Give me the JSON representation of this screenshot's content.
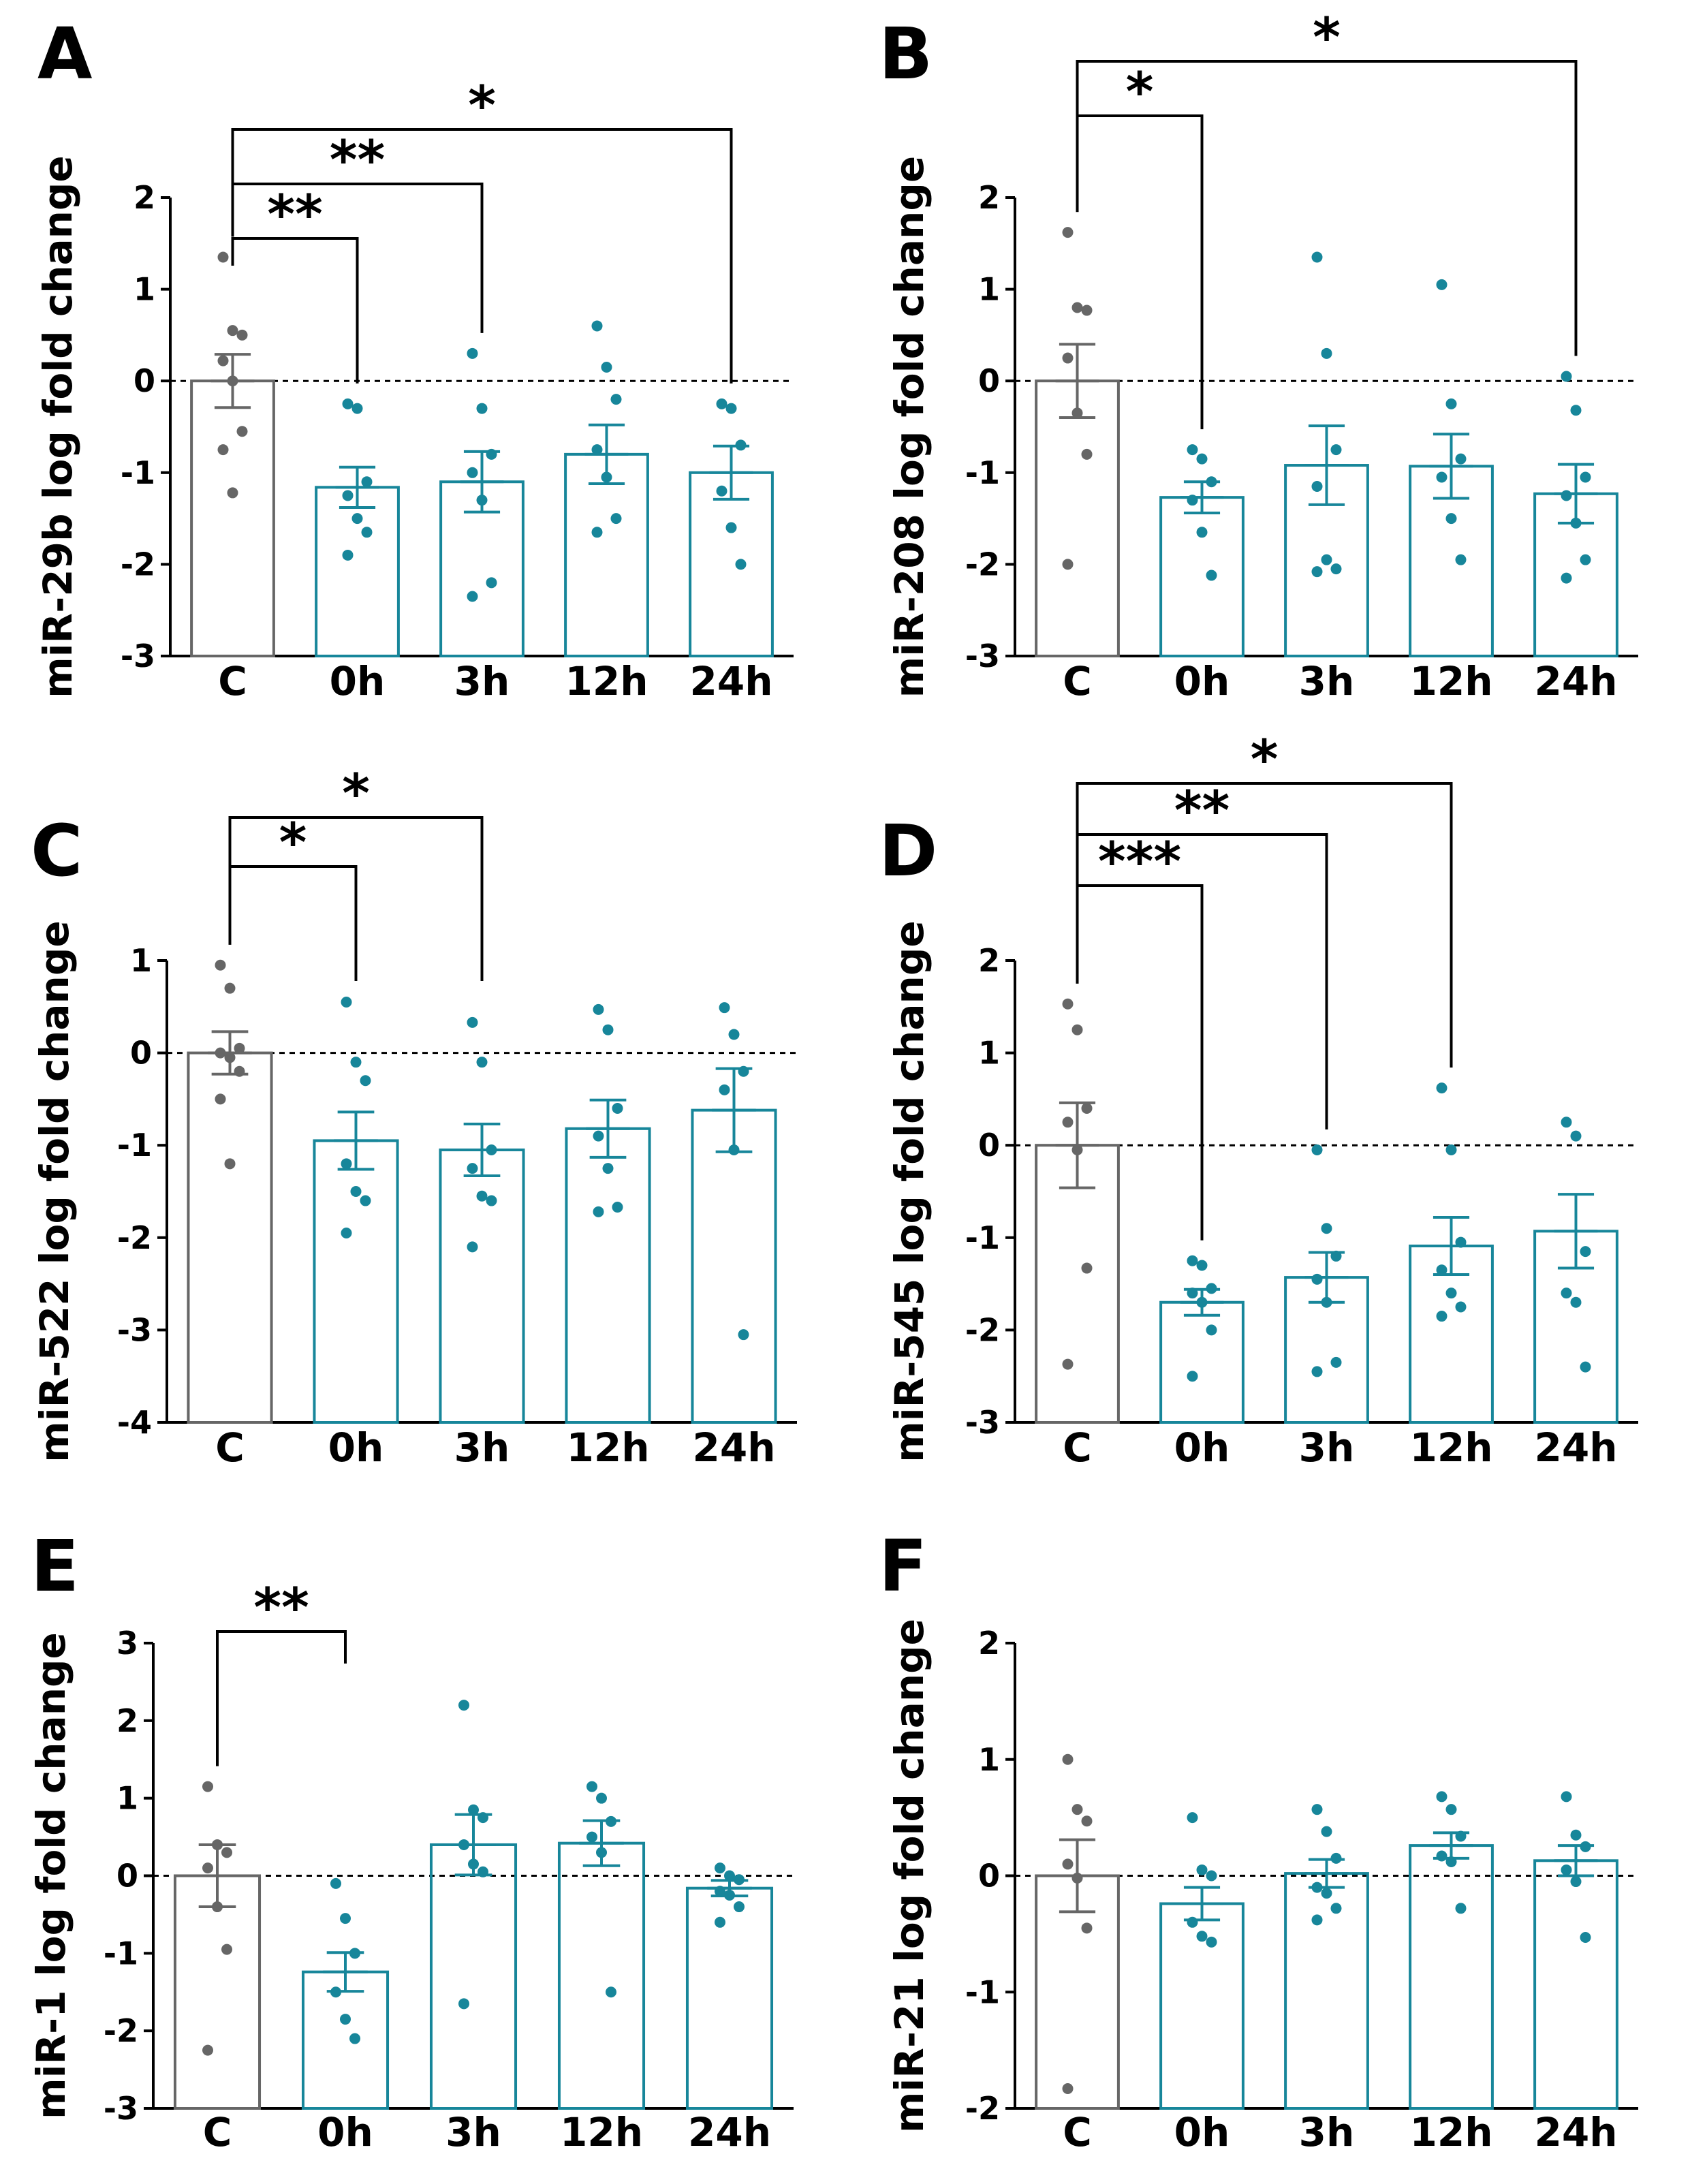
{
  "colors": {
    "control": "#666666",
    "treated": "#17869a",
    "axis": "#000000"
  },
  "chart_data": [
    {
      "type": "bar",
      "panel": "A",
      "ylabel": "miR-29b log fold change",
      "categories": [
        "C",
        "0h",
        "3h",
        "12h",
        "24h"
      ],
      "yticks": [
        "2",
        "1",
        "0",
        "-1",
        "-2",
        "-3"
      ],
      "ylim": [
        -3,
        2
      ],
      "values": [
        0,
        -1.16,
        -1.1,
        -0.8,
        -1.0
      ],
      "sem": [
        0.29,
        0.22,
        0.33,
        0.32,
        0.29
      ],
      "points": [
        [
          1.35,
          0.55,
          0.5,
          0.22,
          0.0,
          -0.55,
          -0.75,
          -1.22
        ],
        [
          -0.25,
          -0.3,
          -1.1,
          -1.25,
          -1.5,
          -1.65,
          -1.9
        ],
        [
          0.3,
          -0.3,
          -0.8,
          -1.0,
          -1.3,
          -2.2,
          -2.35
        ],
        [
          0.6,
          0.15,
          -0.2,
          -0.75,
          -1.05,
          -1.5,
          -1.65
        ],
        [
          -0.25,
          -0.3,
          -0.7,
          -1.2,
          -1.6,
          -2.0
        ]
      ],
      "comparisons": [
        {
          "from": "C",
          "to": "0h",
          "label": "**"
        },
        {
          "from": "C",
          "to": "3h",
          "label": "**"
        },
        {
          "from": "C",
          "to": "24h",
          "label": "*"
        }
      ]
    },
    {
      "type": "bar",
      "panel": "B",
      "ylabel": "miR-208 log fold change",
      "categories": [
        "C",
        "0h",
        "3h",
        "12h",
        "24h"
      ],
      "yticks": [
        "2",
        "1",
        "0",
        "-1",
        "-2",
        "-3"
      ],
      "ylim": [
        -3,
        2
      ],
      "values": [
        0,
        -1.27,
        -0.92,
        -0.93,
        -1.23
      ],
      "sem": [
        0.4,
        0.17,
        0.43,
        0.35,
        0.32
      ],
      "points": [
        [
          1.62,
          0.8,
          0.77,
          0.25,
          -0.35,
          -0.8,
          -2.0
        ],
        [
          -0.75,
          -0.85,
          -1.1,
          -1.3,
          -1.65,
          -2.12
        ],
        [
          1.35,
          0.3,
          -0.75,
          -1.15,
          -1.95,
          -2.05,
          -2.08
        ],
        [
          1.05,
          -0.25,
          -0.85,
          -1.05,
          -1.5,
          -1.95
        ],
        [
          0.05,
          -0.32,
          -1.05,
          -1.25,
          -1.55,
          -1.95,
          -2.15
        ]
      ],
      "comparisons": [
        {
          "from": "C",
          "to": "0h",
          "label": "*"
        },
        {
          "from": "C",
          "to": "24h",
          "label": "*"
        }
      ]
    },
    {
      "type": "bar",
      "panel": "C",
      "ylabel": "miR-522 log fold change",
      "categories": [
        "C",
        "0h",
        "3h",
        "12h",
        "24h"
      ],
      "yticks": [
        "1",
        "0",
        "-1",
        "-2",
        "-3",
        "-4"
      ],
      "ylim": [
        -4,
        1
      ],
      "values": [
        0,
        -0.95,
        -1.05,
        -0.82,
        -0.62
      ],
      "sem": [
        0.23,
        0.31,
        0.28,
        0.31,
        0.45
      ],
      "points": [
        [
          0.95,
          0.7,
          0.05,
          0.0,
          -0.05,
          -0.2,
          -0.5,
          -1.2
        ],
        [
          0.55,
          -0.1,
          -0.3,
          -1.2,
          -1.5,
          -1.6,
          -1.95
        ],
        [
          0.33,
          -0.1,
          -1.05,
          -1.25,
          -1.55,
          -1.6,
          -2.1
        ],
        [
          0.47,
          0.25,
          -0.6,
          -0.9,
          -1.25,
          -1.67,
          -1.72
        ],
        [
          0.49,
          0.2,
          -0.2,
          -0.4,
          -1.05,
          -3.05
        ]
      ],
      "comparisons": [
        {
          "from": "C",
          "to": "0h",
          "label": "*"
        },
        {
          "from": "C",
          "to": "3h",
          "label": "*"
        }
      ]
    },
    {
      "type": "bar",
      "panel": "D",
      "ylabel": "miR-545 log fold change",
      "categories": [
        "C",
        "0h",
        "3h",
        "12h",
        "24h"
      ],
      "yticks": [
        "2",
        "1",
        "0",
        "-1",
        "-2",
        "-3"
      ],
      "ylim": [
        -3,
        2
      ],
      "values": [
        0,
        -1.7,
        -1.43,
        -1.09,
        -0.93
      ],
      "sem": [
        0.46,
        0.14,
        0.27,
        0.31,
        0.4
      ],
      "points": [
        [
          1.53,
          1.25,
          0.4,
          0.25,
          -0.05,
          -1.33,
          -2.37
        ],
        [
          -1.25,
          -1.3,
          -1.55,
          -1.6,
          -1.7,
          -2.0,
          -2.5
        ],
        [
          -0.05,
          -0.9,
          -1.2,
          -1.45,
          -1.7,
          -2.35,
          -2.45
        ],
        [
          0.62,
          -0.05,
          -1.05,
          -1.35,
          -1.6,
          -1.75,
          -1.85
        ],
        [
          0.25,
          0.1,
          -1.15,
          -1.6,
          -1.7,
          -2.4
        ]
      ],
      "comparisons": [
        {
          "from": "C",
          "to": "0h",
          "label": "***"
        },
        {
          "from": "C",
          "to": "3h",
          "label": "**"
        },
        {
          "from": "C",
          "to": "12h",
          "label": "*"
        }
      ]
    },
    {
      "type": "bar",
      "panel": "E",
      "ylabel": "miR-1 log fold change",
      "categories": [
        "C",
        "0h",
        "3h",
        "12h",
        "24h"
      ],
      "yticks": [
        "3",
        "2",
        "1",
        "0",
        "-1",
        "-2",
        "-3"
      ],
      "ylim": [
        -3,
        3
      ],
      "values": [
        0,
        -1.24,
        0.4,
        0.42,
        -0.16
      ],
      "sem": [
        0.4,
        0.25,
        0.39,
        0.29,
        0.1
      ],
      "points": [
        [
          1.15,
          0.4,
          0.3,
          0.1,
          -0.4,
          -0.95,
          -2.25
        ],
        [
          -0.1,
          -0.55,
          -1.0,
          -1.5,
          -1.85,
          -2.1
        ],
        [
          2.2,
          0.85,
          0.75,
          0.4,
          0.15,
          0.05,
          -1.65
        ],
        [
          1.15,
          1.0,
          0.7,
          0.5,
          0.3,
          -1.5
        ],
        [
          0.1,
          0.0,
          -0.05,
          -0.2,
          -0.25,
          -0.4,
          -0.6
        ]
      ],
      "comparisons": [
        {
          "from": "C",
          "to": "0h",
          "label": "**"
        }
      ]
    },
    {
      "type": "bar",
      "panel": "F",
      "ylabel": "miR-21 log fold change",
      "categories": [
        "C",
        "0h",
        "3h",
        "12h",
        "24h"
      ],
      "yticks": [
        "2",
        "1",
        "0",
        "-1",
        "-2"
      ],
      "ylim": [
        -2,
        2
      ],
      "values": [
        0,
        -0.24,
        0.02,
        0.26,
        0.13
      ],
      "sem": [
        0.31,
        0.14,
        0.12,
        0.11,
        0.13
      ],
      "points": [
        [
          1.0,
          0.57,
          0.47,
          0.1,
          -0.02,
          -0.45,
          -1.83
        ],
        [
          0.5,
          0.05,
          0.0,
          -0.4,
          -0.52,
          -0.57
        ],
        [
          0.57,
          0.38,
          0.15,
          -0.1,
          -0.15,
          -0.28,
          -0.38
        ],
        [
          0.68,
          0.57,
          0.34,
          0.17,
          0.12,
          -0.28
        ],
        [
          0.68,
          0.35,
          0.25,
          0.05,
          -0.05,
          -0.53
        ]
      ],
      "comparisons": []
    }
  ]
}
